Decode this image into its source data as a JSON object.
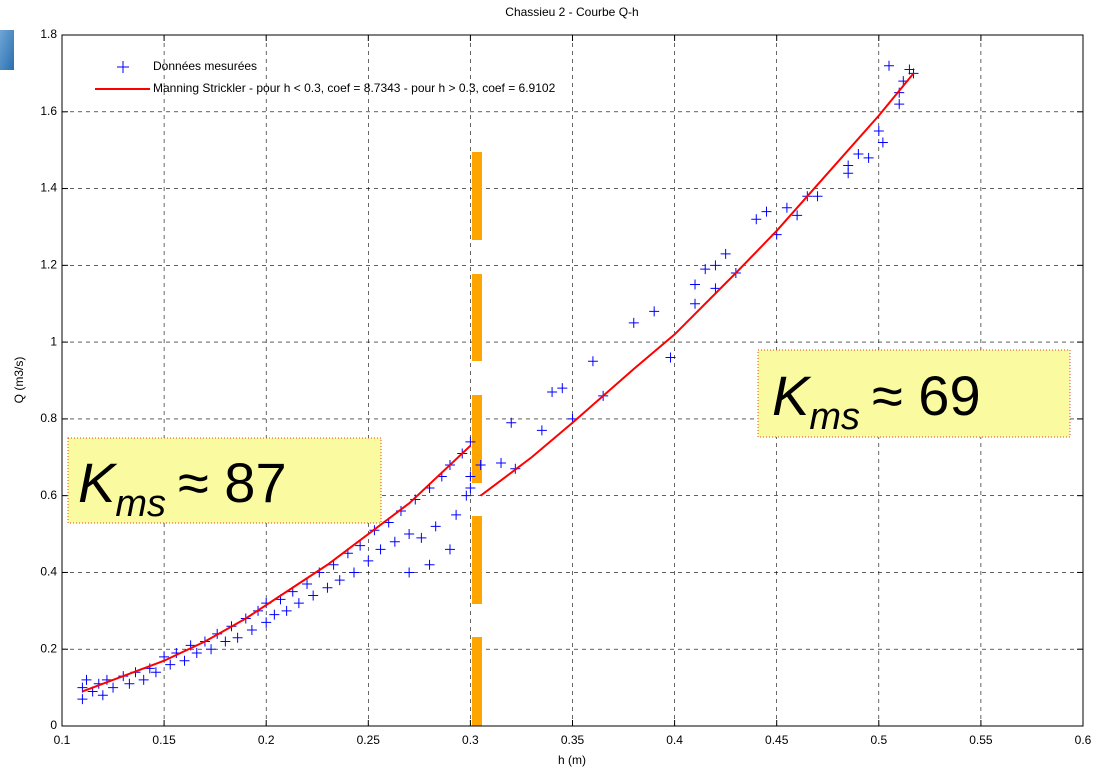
{
  "chart_data": {
    "type": "scatter",
    "title": "Chassieu 2 - Courbe Q-h",
    "x_label": "h (m)",
    "y_label": "Q (m3/s)",
    "xlim": [
      0.1,
      0.6
    ],
    "ylim": [
      0,
      1.8
    ],
    "xticks": [
      0.1,
      0.15,
      0.2,
      0.25,
      0.3,
      0.35,
      0.4,
      0.45,
      0.5,
      0.55,
      0.6
    ],
    "yticks": [
      0,
      0.2,
      0.4,
      0.6,
      0.8,
      1,
      1.2,
      1.4,
      1.6,
      1.8
    ],
    "grid": true,
    "legend": "upper left",
    "series": [
      {
        "name": "Données mesurées",
        "type": "scatter",
        "marker": "+",
        "color": "#0000ff",
        "x": [
          0.11,
          0.11,
          0.112,
          0.115,
          0.118,
          0.12,
          0.122,
          0.125,
          0.13,
          0.133,
          0.136,
          0.14,
          0.143,
          0.146,
          0.15,
          0.153,
          0.156,
          0.16,
          0.163,
          0.166,
          0.17,
          0.173,
          0.176,
          0.18,
          0.183,
          0.186,
          0.19,
          0.193,
          0.196,
          0.2,
          0.2,
          0.204,
          0.207,
          0.21,
          0.213,
          0.216,
          0.22,
          0.223,
          0.226,
          0.23,
          0.233,
          0.236,
          0.24,
          0.243,
          0.246,
          0.25,
          0.253,
          0.256,
          0.26,
          0.263,
          0.266,
          0.27,
          0.273,
          0.276,
          0.28,
          0.283,
          0.286,
          0.29,
          0.29,
          0.293,
          0.296,
          0.298,
          0.3,
          0.3,
          0.28,
          0.27,
          0.3,
          0.305,
          0.315,
          0.32,
          0.322,
          0.335,
          0.34,
          0.345,
          0.35,
          0.36,
          0.365,
          0.38,
          0.39,
          0.398,
          0.41,
          0.41,
          0.415,
          0.42,
          0.42,
          0.425,
          0.43,
          0.44,
          0.445,
          0.45,
          0.455,
          0.46,
          0.465,
          0.47,
          0.485,
          0.485,
          0.49,
          0.495,
          0.5,
          0.502,
          0.505,
          0.51,
          0.512,
          0.515,
          0.517,
          0.51
        ],
        "values": [
          0.1,
          0.07,
          0.12,
          0.09,
          0.11,
          0.08,
          0.12,
          0.1,
          0.13,
          0.11,
          0.14,
          0.12,
          0.15,
          0.14,
          0.18,
          0.16,
          0.19,
          0.17,
          0.21,
          0.19,
          0.22,
          0.2,
          0.24,
          0.22,
          0.26,
          0.23,
          0.28,
          0.25,
          0.3,
          0.27,
          0.32,
          0.29,
          0.33,
          0.3,
          0.35,
          0.32,
          0.37,
          0.34,
          0.4,
          0.36,
          0.42,
          0.38,
          0.45,
          0.4,
          0.47,
          0.43,
          0.51,
          0.46,
          0.53,
          0.48,
          0.56,
          0.5,
          0.59,
          0.49,
          0.62,
          0.52,
          0.65,
          0.46,
          0.68,
          0.55,
          0.71,
          0.6,
          0.74,
          0.65,
          0.42,
          0.4,
          0.62,
          0.68,
          0.685,
          0.79,
          0.67,
          0.77,
          0.87,
          0.88,
          0.8,
          0.95,
          0.86,
          1.05,
          1.08,
          0.96,
          1.1,
          1.15,
          1.19,
          1.14,
          1.2,
          1.23,
          1.18,
          1.32,
          1.34,
          1.28,
          1.35,
          1.33,
          1.38,
          1.38,
          1.44,
          1.46,
          1.49,
          1.48,
          1.55,
          1.52,
          1.72,
          1.65,
          1.68,
          1.71,
          1.7,
          1.62
        ]
      },
      {
        "name": "Manning Strickler - pour h < 0.3, coef = 8.7343 - pour h > 0.3, coef = 6.9102",
        "type": "line",
        "color": "#ff0000",
        "x": [
          0.11,
          0.13,
          0.15,
          0.17,
          0.19,
          0.21,
          0.23,
          0.25,
          0.27,
          0.29,
          0.3,
          null,
          0.305,
          0.33,
          0.35,
          0.38,
          0.4,
          0.43,
          0.45,
          0.48,
          0.5,
          0.517
        ],
        "values": [
          0.09,
          0.13,
          0.17,
          0.22,
          0.28,
          0.35,
          0.42,
          0.5,
          0.58,
          0.68,
          0.73,
          null,
          0.6,
          0.7,
          0.79,
          0.93,
          1.02,
          1.18,
          1.29,
          1.47,
          1.59,
          1.7
        ]
      }
    ],
    "annotations": [
      {
        "symbol": "K",
        "subscript": "ms",
        "text": "≈ 87"
      },
      {
        "symbol": "K",
        "subscript": "ms",
        "text": "≈ 69"
      }
    ]
  }
}
